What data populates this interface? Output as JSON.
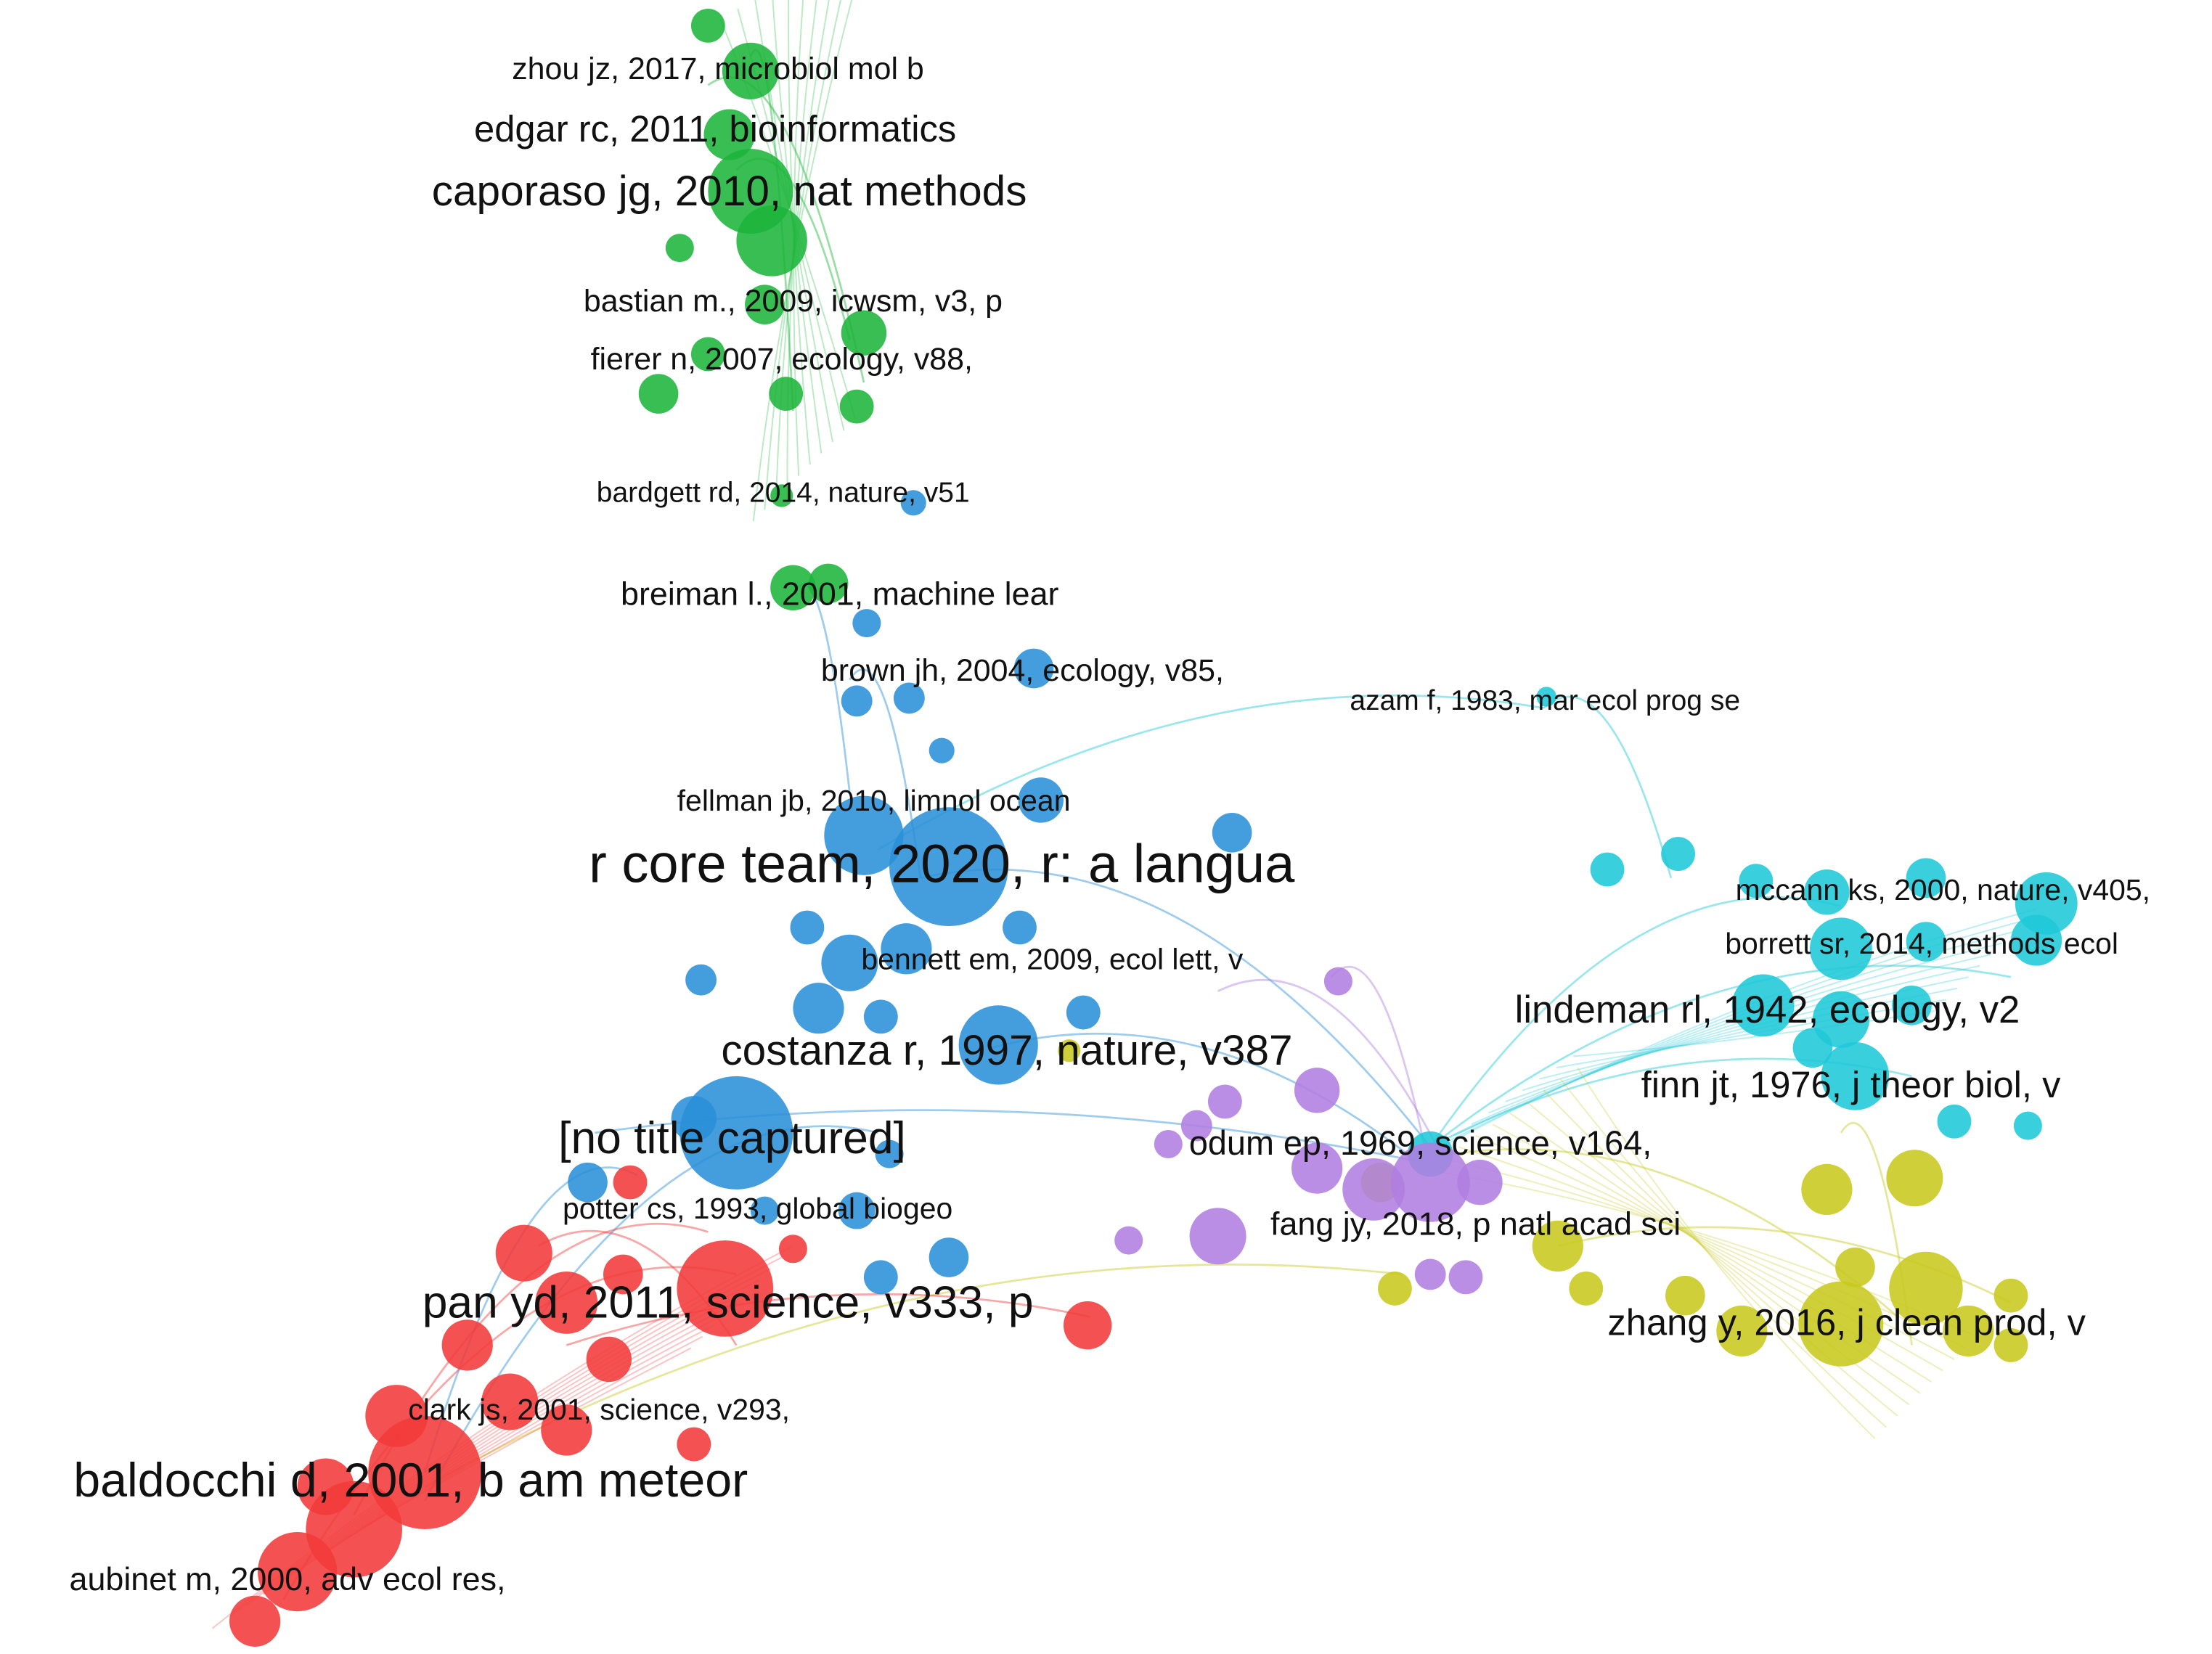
{
  "nodes": [
    {
      "label": "zhou jz, 2017, microbiol mol b"
    },
    {
      "label": "edgar rc, 2011, bioinformatics"
    },
    {
      "label": "caporaso jg, 2010, nat methods"
    },
    {
      "label": "bastian m., 2009, icwsm, v3, p"
    },
    {
      "label": "fierer n, 2007, ecology, v88,"
    },
    {
      "label": "bardgett rd, 2014, nature, v51"
    },
    {
      "label": "breiman l., 2001, machine lear"
    },
    {
      "label": "brown jh, 2004, ecology, v85,"
    },
    {
      "label": "azam f, 1983, mar ecol prog se"
    },
    {
      "label": "fellman jb, 2010, limnol ocean"
    },
    {
      "label": "r core team, 2020, r: a langua"
    },
    {
      "label": "mccann ks, 2000, nature, v405,"
    },
    {
      "label": "borrett sr, 2014, methods ecol"
    },
    {
      "label": "bennett em, 2009, ecol lett, v"
    },
    {
      "label": "lindeman rl, 1942, ecology, v2"
    },
    {
      "label": "costanza r, 1997, nature, v387"
    },
    {
      "label": "finn jt, 1976, j theor biol, v"
    },
    {
      "label": "[no title captured]"
    },
    {
      "label": "odum ep, 1969, science, v164,"
    },
    {
      "label": "potter cs, 1993, global biogeo"
    },
    {
      "label": "fang jy, 2018, p natl acad sci"
    },
    {
      "label": "pan yd, 2011, science, v333, p"
    },
    {
      "label": "zhang y, 2016, j clean prod, v"
    },
    {
      "label": "clark js, 2001, science, v293,"
    },
    {
      "label": "baldocchi d, 2001, b am meteor"
    },
    {
      "label": "aubinet m, 2000, adv ecol res,"
    }
  ]
}
